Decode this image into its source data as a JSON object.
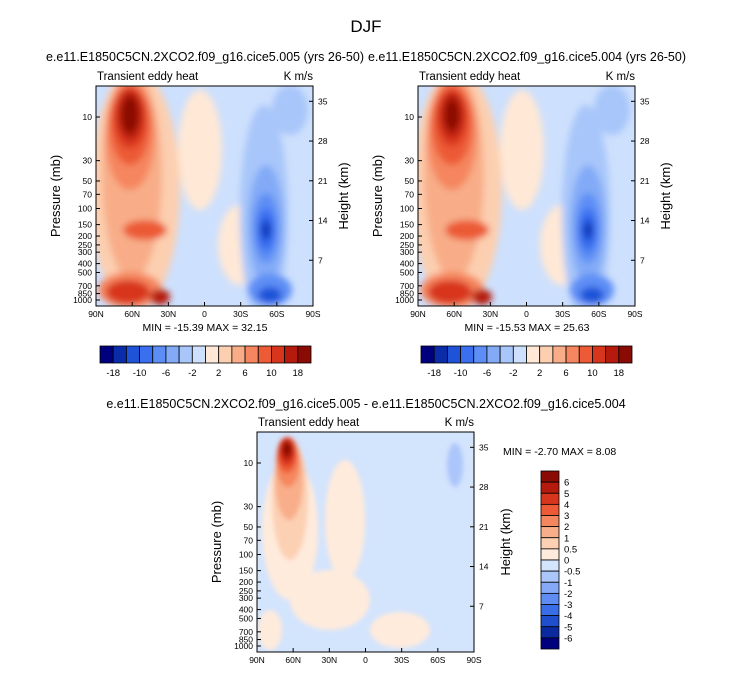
{
  "figure": {
    "main_title": "DJF"
  },
  "palette": {
    "full": [
      "#00007f",
      "#0b2ca8",
      "#1e53d8",
      "#3a6ff0",
      "#5d8ef5",
      "#82aaf7",
      "#a8c6fa",
      "#cde0fd",
      "#ffe8d6",
      "#fccfb0",
      "#f8ad88",
      "#f5865f",
      "#ec5a36",
      "#d8361c",
      "#b61a0d",
      "#8a0a04"
    ],
    "diff": [
      "#00007f",
      "#0c2aa0",
      "#1f4fcc",
      "#3a6ee8",
      "#5e8cf2",
      "#85a9f6",
      "#abc6fa",
      "#d3e4fd",
      "#ffebdc",
      "#fcd0b3",
      "#f8ae8a",
      "#f5875f",
      "#ec5a36",
      "#d8361c",
      "#b61a0d",
      "#8a0a04"
    ]
  },
  "chart_data": [
    {
      "type": "heatmap",
      "panel_id": "panel-1",
      "title": "e.e11.E1850C5CN.2XCO2.f09_g16.cice5.005 (yrs 26-50)",
      "left_label": "Transient eddy heat",
      "right_label": "K m/s",
      "xlabel": "",
      "ylabel": "Pressure (mb)",
      "ylabel_right": "Height (km)",
      "x_ticks": [
        "90N",
        "60N",
        "30N",
        "0",
        "30S",
        "60S",
        "90S"
      ],
      "y_ticks": [
        "10",
        "30",
        "50",
        "70",
        "100",
        "150",
        "200",
        "250",
        "300",
        "400",
        "500",
        "700",
        "850",
        "1000"
      ],
      "y_right_ticks": [
        "35",
        "28",
        "21",
        "14",
        "7"
      ],
      "stat_line": "MIN = -15.39   MAX = 32.15",
      "min": -15.39,
      "max": 32.15,
      "colorbar_labels": [
        "-18",
        "-10",
        "-6",
        "-2",
        "2",
        "6",
        "10",
        "18"
      ]
    },
    {
      "type": "heatmap",
      "panel_id": "panel-2",
      "title": "e.e11.E1850C5CN.2XCO2.f09_g16.cice5.004 (yrs 26-50)",
      "left_label": "Transient eddy heat",
      "right_label": "K m/s",
      "xlabel": "",
      "ylabel": "Pressure (mb)",
      "ylabel_right": "Height (km)",
      "x_ticks": [
        "90N",
        "60N",
        "30N",
        "0",
        "30S",
        "60S",
        "90S"
      ],
      "y_ticks": [
        "10",
        "30",
        "50",
        "70",
        "100",
        "150",
        "200",
        "250",
        "300",
        "400",
        "500",
        "700",
        "850",
        "1000"
      ],
      "y_right_ticks": [
        "35",
        "28",
        "21",
        "14",
        "7"
      ],
      "stat_line": "MIN = -15.53   MAX = 25.63",
      "min": -15.53,
      "max": 25.63,
      "colorbar_labels": [
        "-18",
        "-10",
        "-6",
        "-2",
        "2",
        "6",
        "10",
        "18"
      ]
    },
    {
      "type": "heatmap",
      "panel_id": "panel-3",
      "title": "e.e11.E1850C5CN.2XCO2.f09_g16.cice5.005 - e.e11.E1850C5CN.2XCO2.f09_g16.cice5.004",
      "left_label": "Transient eddy heat",
      "right_label": "K m/s",
      "xlabel": "",
      "ylabel": "Pressure (mb)",
      "ylabel_right": "Height (km)",
      "x_ticks": [
        "90N",
        "60N",
        "30N",
        "0",
        "30S",
        "60S",
        "90S"
      ],
      "y_ticks": [
        "10",
        "30",
        "50",
        "70",
        "100",
        "150",
        "200",
        "250",
        "300",
        "400",
        "500",
        "700",
        "850",
        "1000"
      ],
      "y_right_ticks": [
        "35",
        "28",
        "21",
        "14",
        "7"
      ],
      "stat_line": "MIN = -2.70   MAX =  8.08",
      "min": -2.7,
      "max": 8.08,
      "colorbar_labels": [
        "6",
        "5",
        "4",
        "3",
        "2",
        "1",
        "0.5",
        "0",
        "-0.5",
        "-1",
        "-2",
        "-3",
        "-4",
        "-5",
        "-6"
      ]
    }
  ]
}
